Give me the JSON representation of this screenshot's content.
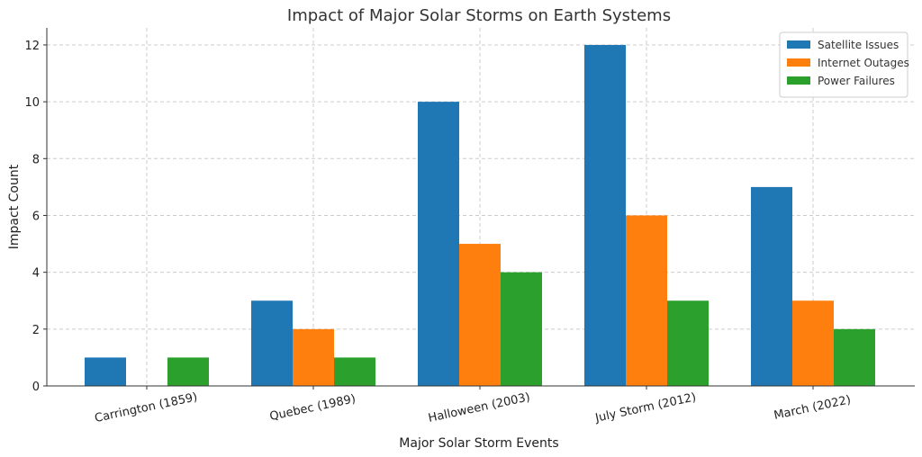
{
  "chart_data": {
    "type": "bar",
    "title": "Impact of Major Solar Storms on Earth Systems",
    "xlabel": "Major Solar Storm Events",
    "ylabel": "Impact Count",
    "categories": [
      "Carrington (1859)",
      "Quebec (1989)",
      "Halloween (2003)",
      "July Storm (2012)",
      "March (2022)"
    ],
    "series": [
      {
        "name": "Satellite Issues",
        "color": "#1f77b4",
        "values": [
          1,
          3,
          10,
          12,
          7
        ]
      },
      {
        "name": "Internet Outages",
        "color": "#ff7f0e",
        "values": [
          0,
          2,
          5,
          6,
          3
        ]
      },
      {
        "name": "Power Failures",
        "color": "#2ca02c",
        "values": [
          1,
          1,
          4,
          3,
          2
        ]
      }
    ],
    "ylim": [
      0,
      12.6
    ],
    "yticks": [
      0,
      2,
      4,
      6,
      8,
      10,
      12
    ],
    "grid": true,
    "legend_position": "top-right"
  }
}
